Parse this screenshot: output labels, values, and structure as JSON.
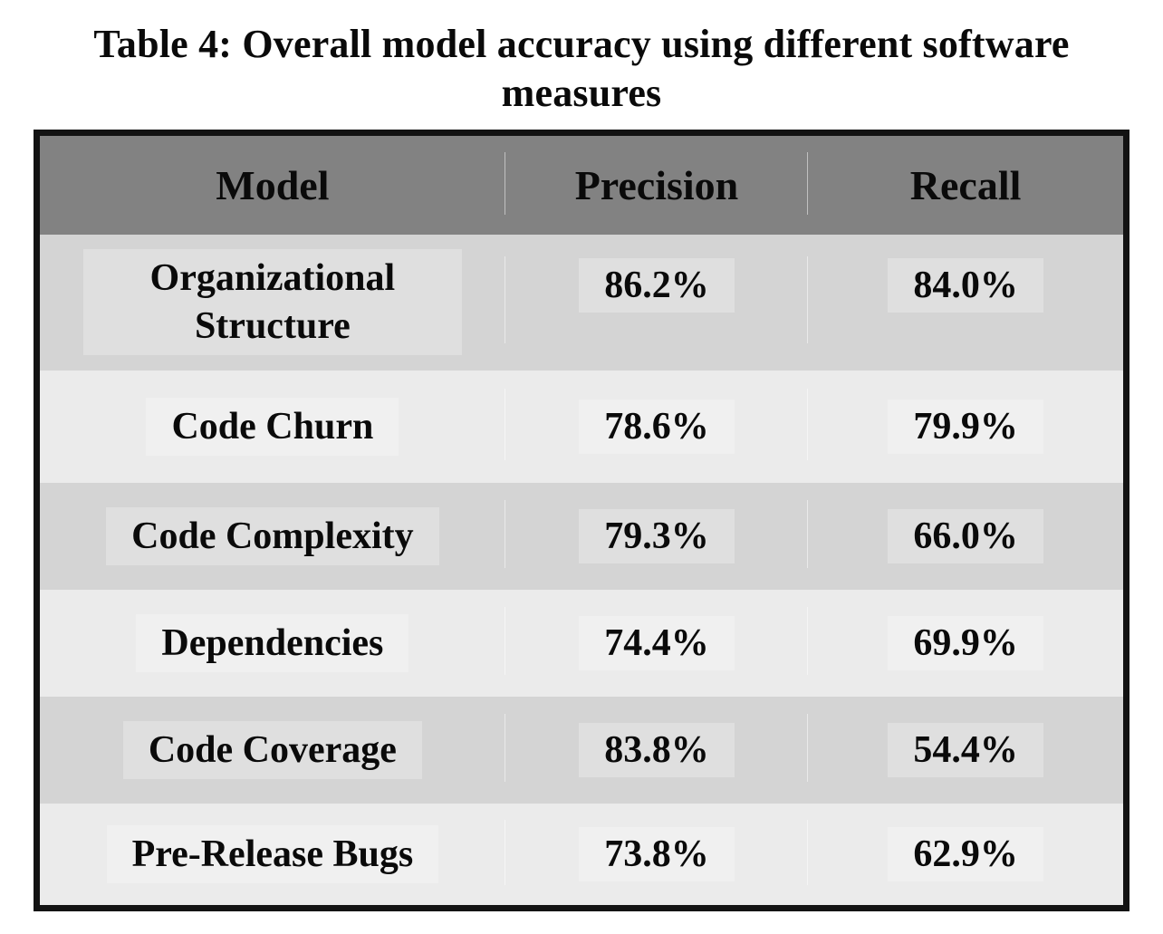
{
  "title": "Table 4: Overall model accuracy using different software measures",
  "table": {
    "columns": [
      {
        "label": "Model"
      },
      {
        "label": "Precision"
      },
      {
        "label": "Recall"
      }
    ],
    "rows": [
      {
        "model": "Organizational Structure",
        "precision": "86.2%",
        "recall": "84.0%"
      },
      {
        "model": "Code Churn",
        "precision": "78.6%",
        "recall": "79.9%"
      },
      {
        "model": "Code Complexity",
        "precision": "79.3%",
        "recall": "66.0%"
      },
      {
        "model": "Dependencies",
        "precision": "74.4%",
        "recall": "69.9%"
      },
      {
        "model": "Code Coverage",
        "precision": "83.8%",
        "recall": "54.4%"
      },
      {
        "model": "Pre-Release Bugs",
        "precision": "73.8%",
        "recall": "62.9%"
      }
    ],
    "colors": {
      "header_bg": "#828282",
      "row_dark_bg": "#d4d4d4",
      "row_light_bg": "#ebebeb",
      "border": "#131313",
      "text": "#0a0a0a"
    }
  },
  "chart_data": {
    "type": "table",
    "title": "Table 4: Overall model accuracy using different software measures",
    "columns": [
      "Model",
      "Precision",
      "Recall"
    ],
    "rows": [
      [
        "Organizational Structure",
        "86.2%",
        "84.0%"
      ],
      [
        "Code Churn",
        "78.6%",
        "79.9%"
      ],
      [
        "Code Complexity",
        "79.3%",
        "66.0%"
      ],
      [
        "Dependencies",
        "74.4%",
        "69.9%"
      ],
      [
        "Code Coverage",
        "83.8%",
        "54.4%"
      ],
      [
        "Pre-Release Bugs",
        "73.8%",
        "62.9%"
      ]
    ]
  }
}
